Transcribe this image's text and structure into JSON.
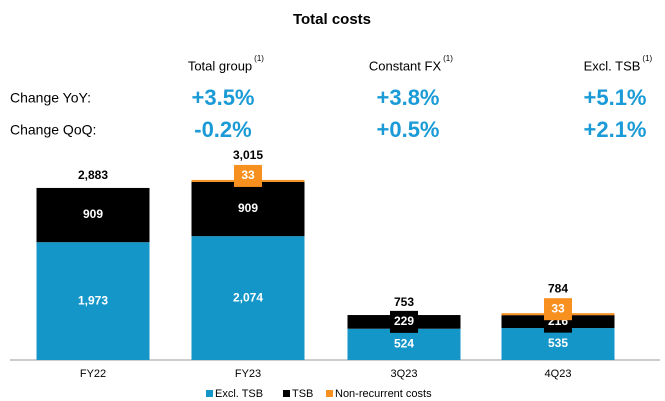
{
  "table": {
    "columns": [
      {
        "label": "Total group",
        "note": "(1)"
      },
      {
        "label": "Constant FX",
        "note": "(1)"
      },
      {
        "label": "Excl. TSB",
        "note": "(1)"
      }
    ],
    "rows": [
      {
        "label": "Change YoY:",
        "cells": [
          "+3.5%",
          "+3.8%",
          "+5.1%"
        ]
      },
      {
        "label": "Change QoQ:",
        "cells": [
          "-0.2%",
          "+0.5%",
          "+2.1%"
        ]
      }
    ]
  },
  "chart_data": {
    "type": "stacked_bar",
    "title": "Total costs",
    "categories": [
      "FY22",
      "FY23",
      "3Q23",
      "4Q23"
    ],
    "series": [
      {
        "name": "Excl. TSB",
        "color": "#1496c8",
        "values": [
          1973,
          2074,
          524,
          535
        ],
        "value_labels": [
          "1,973",
          "2,074",
          "524",
          "535"
        ]
      },
      {
        "name": "TSB",
        "color": "#000000",
        "values": [
          909,
          909,
          229,
          216
        ]
      },
      {
        "name": "Non-recurrent costs",
        "color": "#f7901e",
        "values": [
          null,
          33,
          null,
          33
        ]
      }
    ],
    "totals": {
      "values": [
        2883,
        3015,
        753,
        784
      ],
      "value_labels": [
        "2,883",
        "3,015",
        "753",
        "784"
      ]
    }
  }
}
